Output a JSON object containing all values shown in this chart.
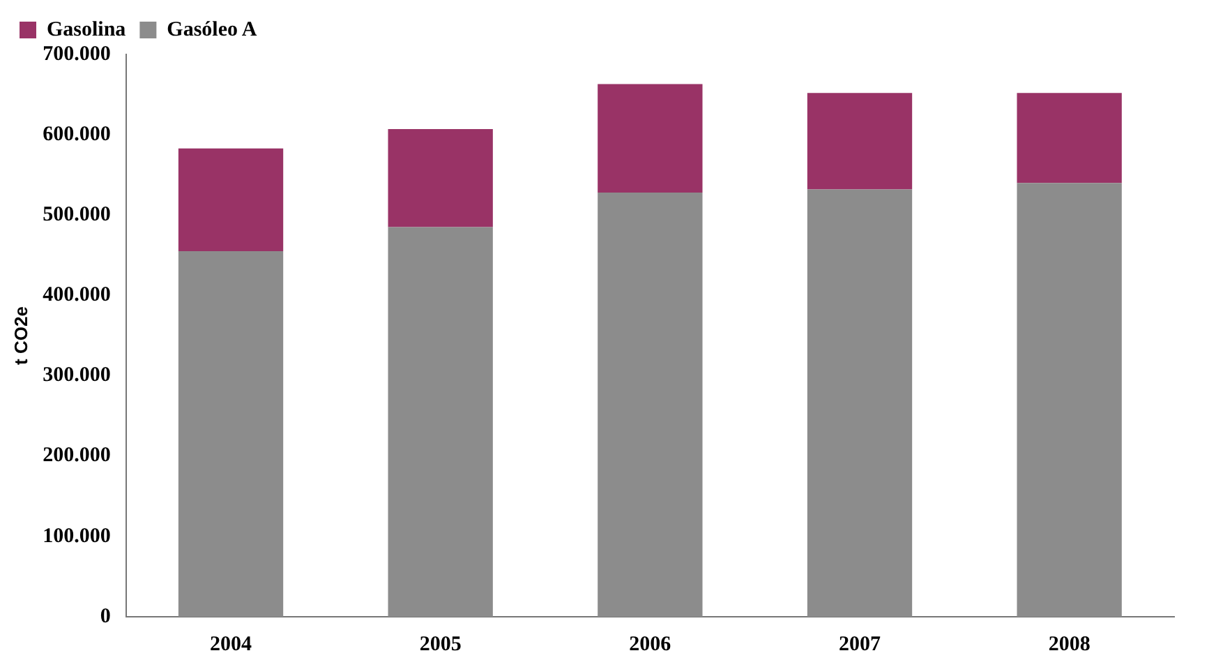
{
  "chart_data": {
    "type": "bar",
    "stacked": true,
    "ylabel": "t CO2e",
    "categories": [
      "2004",
      "2005",
      "2006",
      "2007",
      "2008"
    ],
    "series": [
      {
        "name": "Gasóleo A",
        "color": "#8c8c8c",
        "values": [
          455000,
          485000,
          528000,
          532000,
          540000
        ]
      },
      {
        "name": "Gasolina",
        "color": "#993366",
        "values": [
          128000,
          122000,
          135000,
          120000,
          112000
        ]
      }
    ],
    "ylim": [
      0,
      700000
    ],
    "yticks": [
      {
        "value": 0,
        "label": "0"
      },
      {
        "value": 100000,
        "label": "100.000"
      },
      {
        "value": 200000,
        "label": "200.000"
      },
      {
        "value": 300000,
        "label": "300.000"
      },
      {
        "value": 400000,
        "label": "400.000"
      },
      {
        "value": 500000,
        "label": "500.000"
      },
      {
        "value": 600000,
        "label": "600.000"
      },
      {
        "value": 700000,
        "label": "700.000"
      }
    ],
    "grid": false,
    "legend": "top left"
  }
}
